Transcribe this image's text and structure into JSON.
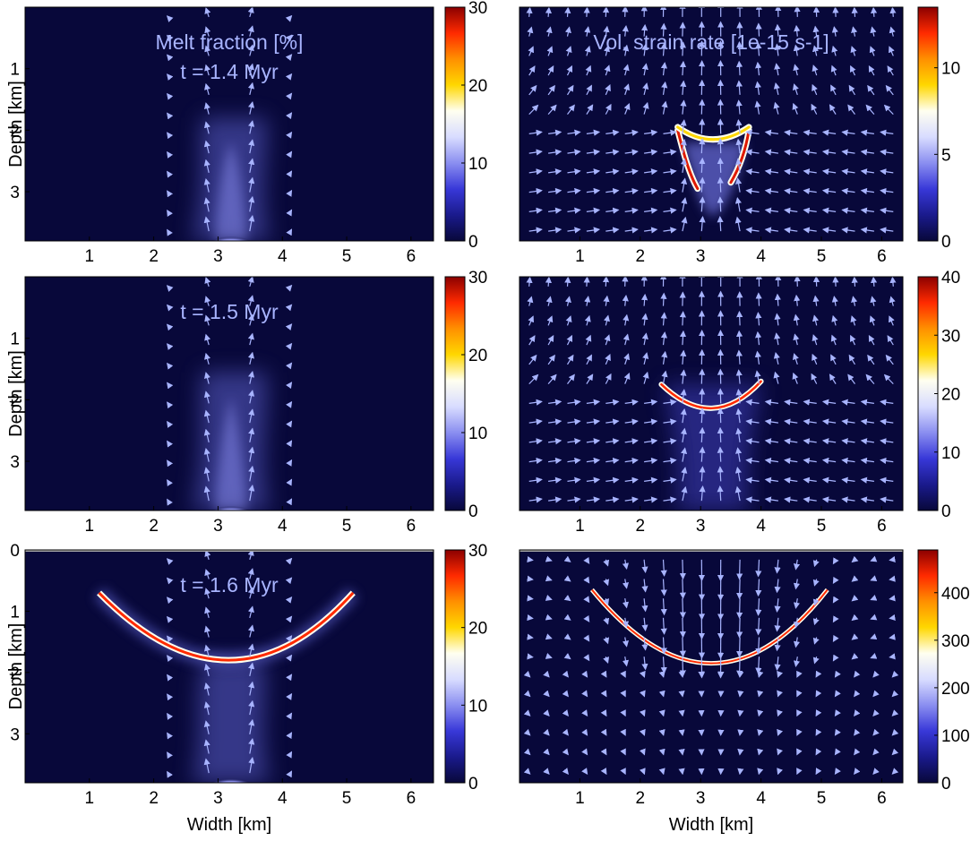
{
  "figure": {
    "x_axis_label": "Width [km]",
    "y_axis_label": "Depth [km]",
    "x_ticks": [
      "1",
      "2",
      "3",
      "4",
      "5",
      "6"
    ],
    "depth_ticks_upper": [
      "1",
      "2",
      "3"
    ],
    "depth_ticks_bottom": [
      "0",
      "1",
      "2",
      "3"
    ]
  },
  "colors": {
    "background": "#08083a",
    "arrow": "#a8b4ff",
    "colormap": [
      "#08083a",
      "#1a1a8c",
      "#3838d8",
      "#8a8ef0",
      "#d8dcff",
      "#fffff0",
      "#ffd700",
      "#ff9000",
      "#ff2a00",
      "#8b0000"
    ]
  },
  "panels": [
    {
      "id": "melt-1",
      "title": "Melt fraction [%]",
      "subtitle": "t = 1.4 Myr",
      "cbar_ticks": [
        "0",
        "10",
        "20",
        "30"
      ],
      "cbar_max": 30,
      "feature": "melt-plume",
      "surface": false
    },
    {
      "id": "strain-1",
      "title": "Vol. strain rate [1e-15 s-1]",
      "subtitle": "",
      "cbar_ticks": [
        "0",
        "5",
        "10"
      ],
      "cbar_max": 13.5,
      "feature": "v-ring",
      "surface": false
    },
    {
      "id": "melt-2",
      "title": "",
      "subtitle": "t = 1.5 Myr",
      "cbar_ticks": [
        "0",
        "10",
        "20",
        "30"
      ],
      "cbar_max": 30,
      "feature": "melt-plume",
      "surface": false
    },
    {
      "id": "strain-2",
      "title": "",
      "subtitle": "",
      "cbar_ticks": [
        "0",
        "10",
        "20",
        "30",
        "40"
      ],
      "cbar_max": 40,
      "feature": "arc",
      "surface": false
    },
    {
      "id": "melt-3",
      "title": "",
      "subtitle": "t = 1.6 Myr",
      "cbar_ticks": [
        "0",
        "10",
        "20",
        "30"
      ],
      "cbar_max": 30,
      "feature": "v-band",
      "surface": true
    },
    {
      "id": "strain-3",
      "title": "",
      "subtitle": "",
      "cbar_ticks": [
        "0",
        "100",
        "200",
        "300",
        "400"
      ],
      "cbar_max": 490,
      "feature": "v-line",
      "surface": true
    }
  ],
  "chart_data": [
    {
      "type": "heatmap",
      "quantity": "Melt fraction [%]",
      "time_label": "t = 1.4 Myr",
      "xlim": [
        0,
        6.35
      ],
      "ylim_depth": [
        0,
        3.8
      ],
      "colorbar_range": [
        0,
        30
      ],
      "feature": "melt source at base centered x≈3.2 km, weak plume rising to ≈1.8 km depth"
    },
    {
      "type": "heatmap",
      "quantity": "Vol. strain rate [1e-15 s-1]",
      "xlim": [
        0,
        6.35
      ],
      "ylim_depth": [
        0,
        3.8
      ],
      "colorbar_range": [
        0,
        13.5
      ],
      "feature": "V-shaped high strain band between x≈2.6–3.7 km, depth ≈1.9–3.0 km"
    },
    {
      "type": "heatmap",
      "quantity": "Melt fraction [%]",
      "time_label": "t = 1.5 Myr",
      "xlim": [
        0,
        6.35
      ],
      "ylim_depth": [
        0,
        3.8
      ],
      "colorbar_range": [
        0,
        30
      ],
      "feature": "melt source at base centered x≈3.2 km, plume rising to ≈1.6 km depth"
    },
    {
      "type": "heatmap",
      "quantity": "Vol. strain rate [1e-15 s-1]",
      "xlim": [
        0,
        6.35
      ],
      "ylim_depth": [
        0,
        3.8
      ],
      "colorbar_range": [
        0,
        40
      ],
      "feature": "arc from x≈2.3 to 4.0 km, bottom at depth ≈2.0 km"
    },
    {
      "type": "heatmap",
      "quantity": "Melt fraction [%]",
      "time_label": "t = 1.6 Myr",
      "xlim": [
        0,
        6.35
      ],
      "ylim_depth": [
        0,
        3.8
      ],
      "colorbar_range": [
        0,
        30
      ],
      "feature": "V-shaped melt band from x≈1.1 to 5.1 km, bottom at depth ≈1.85 km near x≈3.2 km"
    },
    {
      "type": "heatmap",
      "quantity": "Vol. strain rate [1e-15 s-1]",
      "xlim": [
        0,
        6.35
      ],
      "ylim_depth": [
        0,
        3.8
      ],
      "colorbar_range": [
        0,
        490
      ],
      "feature": "thin V-shaped line from x≈1.2 to 5.1 km, bottom at depth ≈1.85 km"
    }
  ]
}
